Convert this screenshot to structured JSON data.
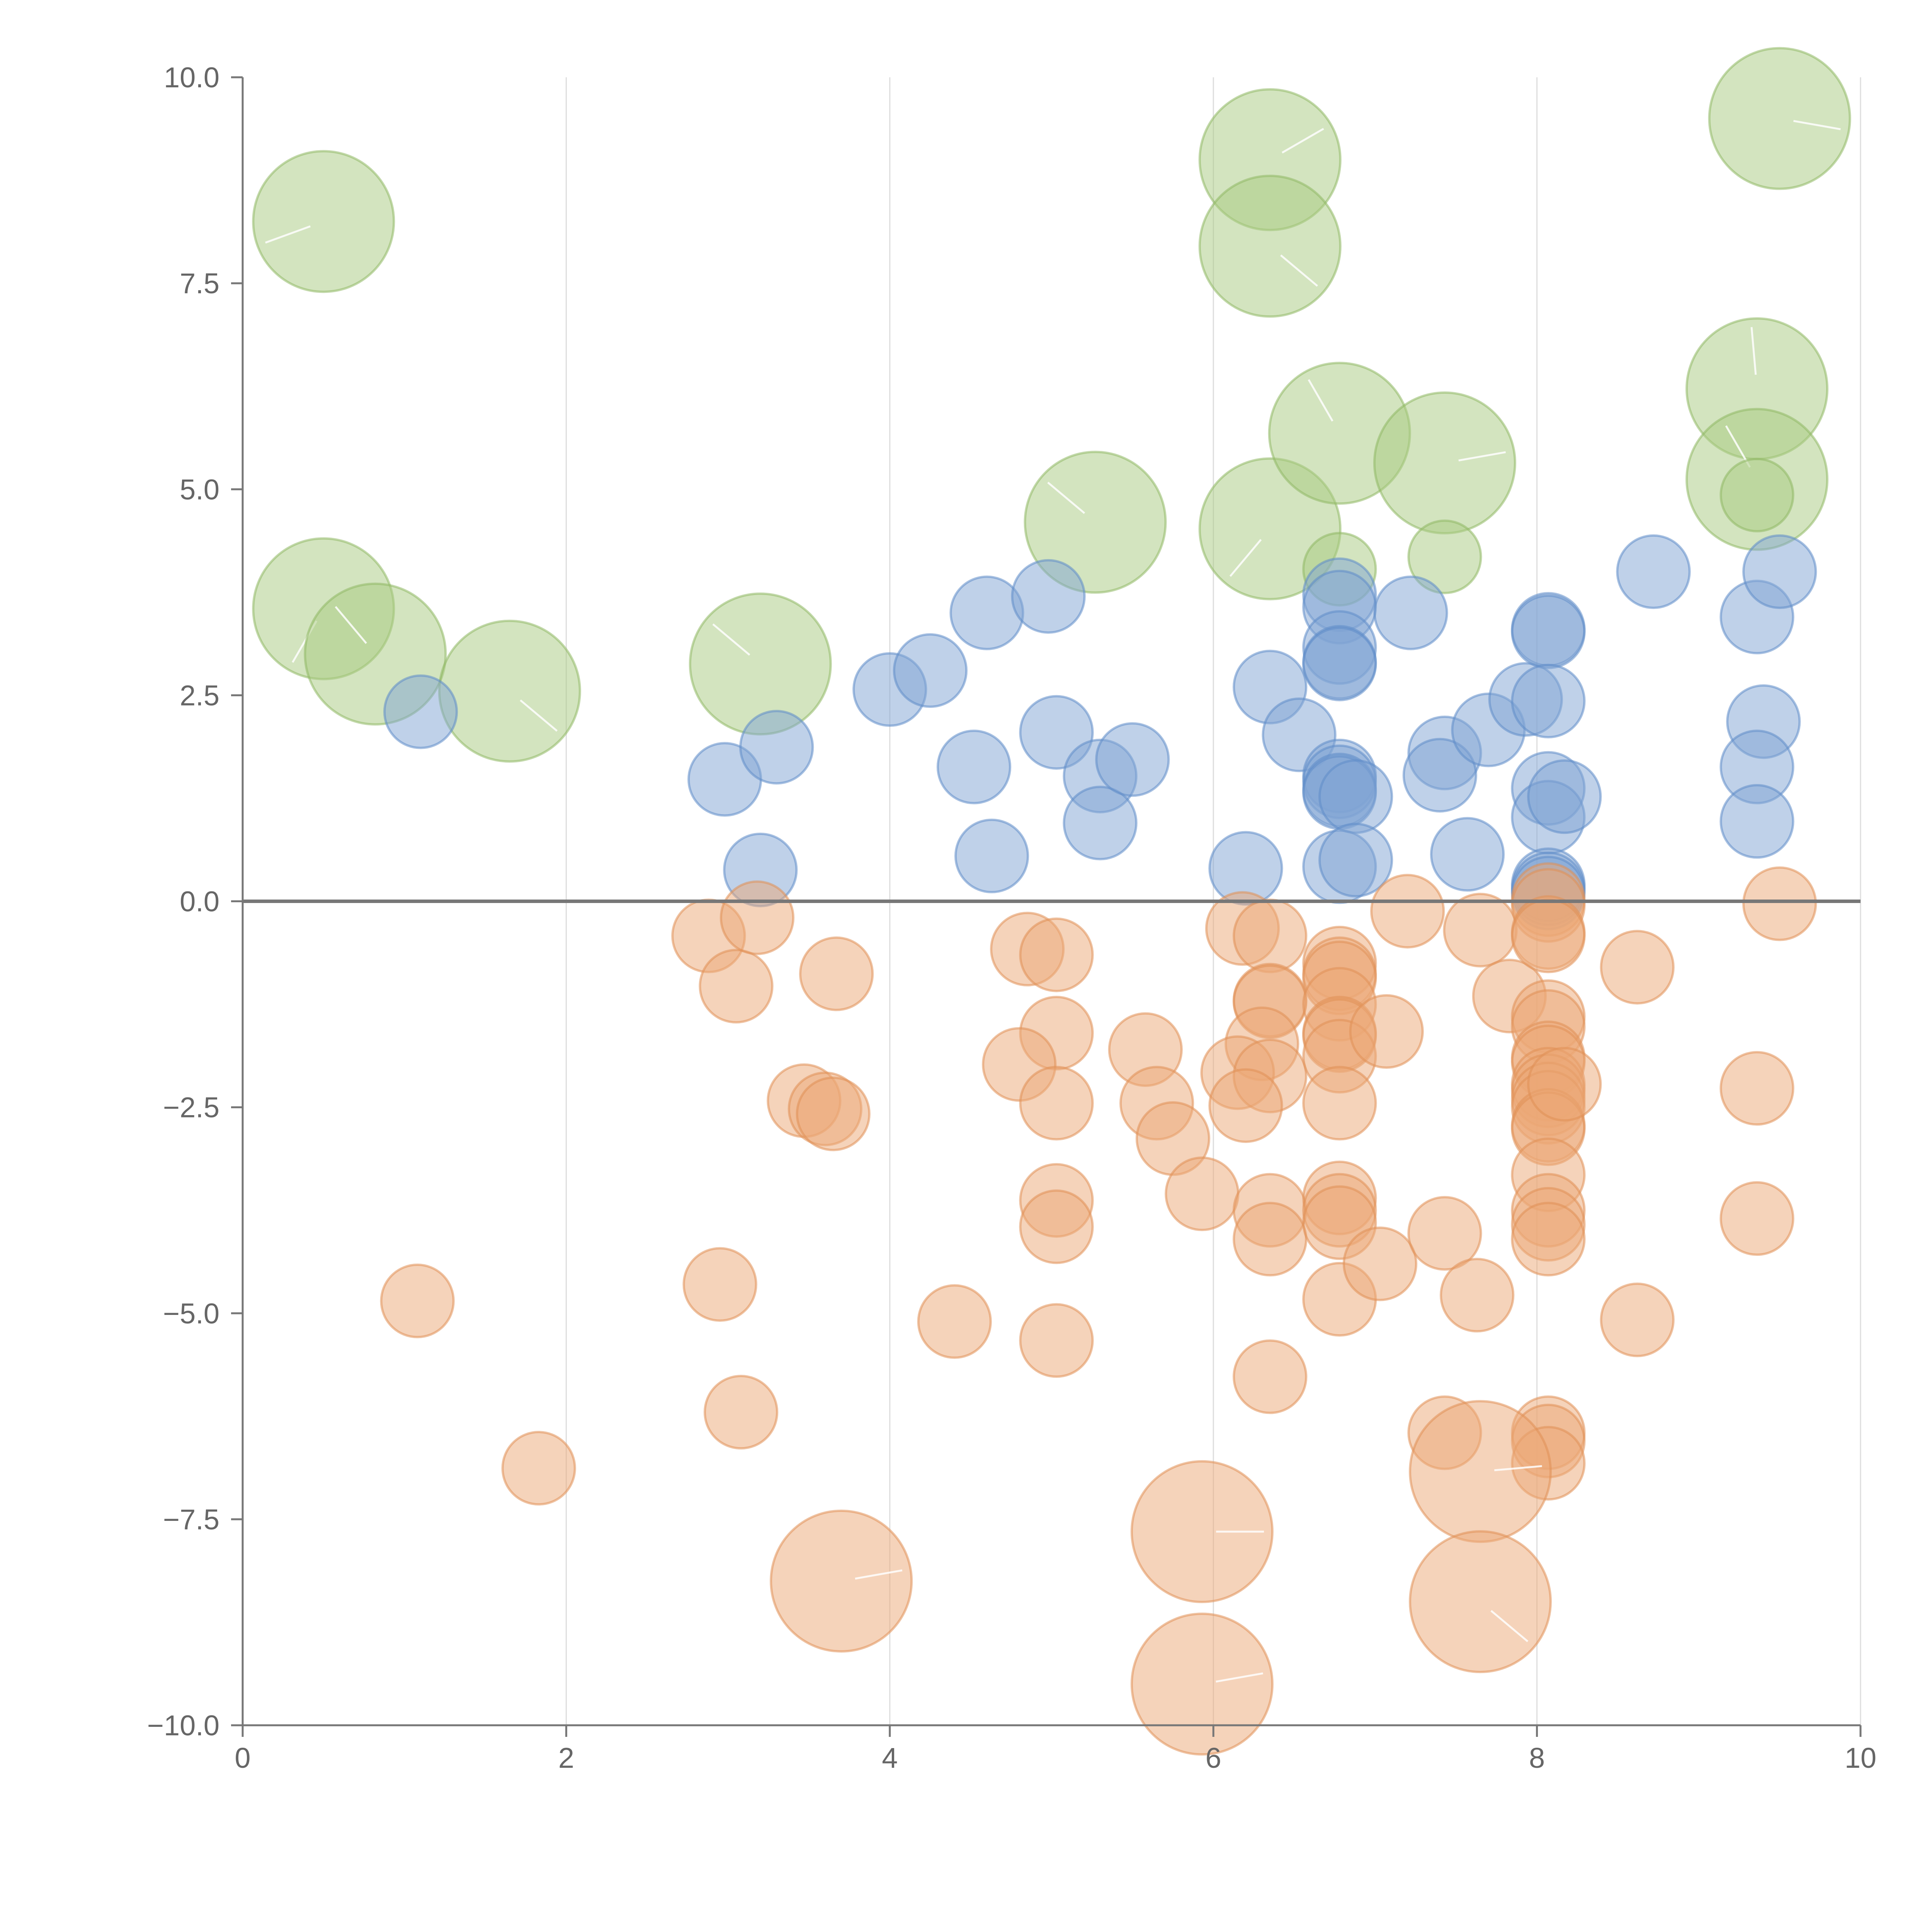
{
  "chart_data": {
    "type": "scatter",
    "title": "",
    "xlabel": "",
    "ylabel": "",
    "xlim": [
      0,
      10
    ],
    "ylim": [
      -10,
      10
    ],
    "grid": {
      "vertical": true,
      "horizontal": false
    },
    "reference_line": {
      "y": 0,
      "label": ""
    },
    "x_ticks": [
      0,
      2,
      4,
      6,
      8,
      10
    ],
    "x_tick_labels": [
      "0",
      "2",
      "4",
      "6",
      "8",
      "10"
    ],
    "y_ticks": [
      10,
      7.5,
      5,
      2.5,
      0,
      -2.5,
      -5,
      -7.5,
      -10
    ],
    "y_tick_labels": [
      "10.0",
      "7.5",
      "5.0",
      "2.5",
      "0.0",
      "−2.5",
      "−5.0",
      "−7.5",
      "−10.0"
    ],
    "size_unit": "relative magnitude",
    "series": [
      {
        "name": "green",
        "color": "#a8c97f",
        "stroke": "#8fb864",
        "points": [
          {
            "x": 0.5,
            "y": 8.25,
            "s": 3.5,
            "a": 200
          },
          {
            "x": 0.5,
            "y": 3.55,
            "s": 3.5,
            "a": 240
          },
          {
            "x": 0.82,
            "y": 3.0,
            "s": 3.5,
            "a": 130
          },
          {
            "x": 1.65,
            "y": 2.55,
            "s": 3.5,
            "a": 320
          },
          {
            "x": 3.2,
            "y": 2.88,
            "s": 3.5,
            "a": 140
          },
          {
            "x": 5.27,
            "y": 4.6,
            "s": 3.5,
            "a": 140
          },
          {
            "x": 6.35,
            "y": 9.0,
            "s": 3.5,
            "a": 30
          },
          {
            "x": 6.35,
            "y": 7.95,
            "s": 3.5,
            "a": 320
          },
          {
            "x": 6.35,
            "y": 4.52,
            "s": 3.5,
            "a": 230
          },
          {
            "x": 6.78,
            "y": 5.68,
            "s": 3.5,
            "a": 120
          },
          {
            "x": 7.43,
            "y": 5.32,
            "s": 3.5,
            "a": 10
          },
          {
            "x": 9.36,
            "y": 6.22,
            "s": 3.5,
            "a": 95
          },
          {
            "x": 9.36,
            "y": 5.12,
            "s": 3.5,
            "a": 120
          },
          {
            "x": 9.5,
            "y": 9.5,
            "s": 3.5,
            "a": 350
          },
          {
            "x": 6.78,
            "y": 4.03,
            "s": 1.8,
            "a": 0
          },
          {
            "x": 7.43,
            "y": 4.18,
            "s": 1.8,
            "a": 0
          },
          {
            "x": 9.36,
            "y": 4.93,
            "s": 1.8,
            "a": 0
          }
        ]
      },
      {
        "name": "blue",
        "color": "#7fa3d4",
        "stroke": "#5f8dc8",
        "points": [
          {
            "x": 1.1,
            "y": 2.3,
            "s": 1.8
          },
          {
            "x": 2.98,
            "y": 1.48,
            "s": 1.8
          },
          {
            "x": 3.2,
            "y": 0.38,
            "s": 1.8
          },
          {
            "x": 3.3,
            "y": 1.87,
            "s": 1.8
          },
          {
            "x": 4.0,
            "y": 2.57,
            "s": 1.8
          },
          {
            "x": 4.25,
            "y": 2.8,
            "s": 1.8
          },
          {
            "x": 4.52,
            "y": 1.63,
            "s": 1.8
          },
          {
            "x": 4.6,
            "y": 3.5,
            "s": 1.8
          },
          {
            "x": 4.63,
            "y": 0.55,
            "s": 1.8
          },
          {
            "x": 4.98,
            "y": 3.7,
            "s": 1.8
          },
          {
            "x": 5.03,
            "y": 2.05,
            "s": 1.8
          },
          {
            "x": 5.3,
            "y": 1.52,
            "s": 1.8
          },
          {
            "x": 5.3,
            "y": 0.95,
            "s": 1.8
          },
          {
            "x": 5.5,
            "y": 1.72,
            "s": 1.8
          },
          {
            "x": 6.2,
            "y": 0.4,
            "s": 1.8
          },
          {
            "x": 6.35,
            "y": 2.6,
            "s": 1.8
          },
          {
            "x": 6.53,
            "y": 2.02,
            "s": 1.8
          },
          {
            "x": 6.78,
            "y": 3.72,
            "s": 1.8
          },
          {
            "x": 6.78,
            "y": 3.57,
            "s": 1.8
          },
          {
            "x": 6.78,
            "y": 3.08,
            "s": 1.8
          },
          {
            "x": 6.78,
            "y": 2.9,
            "s": 1.8
          },
          {
            "x": 6.78,
            "y": 2.88,
            "s": 1.8
          },
          {
            "x": 6.78,
            "y": 1.52,
            "s": 1.8
          },
          {
            "x": 6.78,
            "y": 1.45,
            "s": 1.8
          },
          {
            "x": 6.78,
            "y": 1.35,
            "s": 1.8
          },
          {
            "x": 6.78,
            "y": 1.32,
            "s": 1.8
          },
          {
            "x": 6.88,
            "y": 1.27,
            "s": 1.8
          },
          {
            "x": 6.78,
            "y": 0.42,
            "s": 1.8
          },
          {
            "x": 6.88,
            "y": 0.5,
            "s": 1.8
          },
          {
            "x": 7.22,
            "y": 3.5,
            "s": 1.8
          },
          {
            "x": 7.43,
            "y": 1.8,
            "s": 1.8
          },
          {
            "x": 7.4,
            "y": 1.53,
            "s": 1.8
          },
          {
            "x": 7.57,
            "y": 0.57,
            "s": 1.8
          },
          {
            "x": 7.7,
            "y": 2.08,
            "s": 1.8
          },
          {
            "x": 7.93,
            "y": 2.45,
            "s": 1.8
          },
          {
            "x": 8.07,
            "y": 3.3,
            "s": 1.8
          },
          {
            "x": 8.07,
            "y": 3.27,
            "s": 1.8
          },
          {
            "x": 8.07,
            "y": 2.43,
            "s": 1.8
          },
          {
            "x": 8.07,
            "y": 1.37,
            "s": 1.8
          },
          {
            "x": 8.07,
            "y": 1.02,
            "s": 1.8
          },
          {
            "x": 8.17,
            "y": 1.27,
            "s": 1.8
          },
          {
            "x": 8.07,
            "y": 0.2,
            "s": 1.8
          },
          {
            "x": 8.07,
            "y": 0.15,
            "s": 1.8
          },
          {
            "x": 8.07,
            "y": 0.1,
            "s": 1.8
          },
          {
            "x": 8.72,
            "y": 4.0,
            "s": 1.8
          },
          {
            "x": 9.36,
            "y": 3.45,
            "s": 1.8
          },
          {
            "x": 9.4,
            "y": 2.18,
            "s": 1.8
          },
          {
            "x": 9.36,
            "y": 1.63,
            "s": 1.8
          },
          {
            "x": 9.36,
            "y": 0.97,
            "s": 1.8
          },
          {
            "x": 9.5,
            "y": 4.0,
            "s": 1.8
          }
        ]
      },
      {
        "name": "orange",
        "color": "#eba876",
        "stroke": "#e08f55",
        "points": [
          {
            "x": 1.08,
            "y": -4.85,
            "s": 1.8
          },
          {
            "x": 1.83,
            "y": -6.88,
            "s": 1.8
          },
          {
            "x": 2.88,
            "y": -0.42,
            "s": 1.8
          },
          {
            "x": 3.05,
            "y": -1.03,
            "s": 1.8
          },
          {
            "x": 3.18,
            "y": -0.2,
            "s": 1.8
          },
          {
            "x": 2.95,
            "y": -4.65,
            "s": 1.8
          },
          {
            "x": 3.08,
            "y": -6.2,
            "s": 1.8
          },
          {
            "x": 3.47,
            "y": -2.42,
            "s": 1.8
          },
          {
            "x": 3.6,
            "y": -2.52,
            "s": 1.8
          },
          {
            "x": 3.65,
            "y": -2.58,
            "s": 1.8
          },
          {
            "x": 3.67,
            "y": -0.88,
            "s": 1.8
          },
          {
            "x": 4.4,
            "y": -5.1,
            "s": 1.8
          },
          {
            "x": 4.85,
            "y": -0.58,
            "s": 1.8
          },
          {
            "x": 5.03,
            "y": -0.65,
            "s": 1.8
          },
          {
            "x": 5.03,
            "y": -1.6,
            "s": 1.8
          },
          {
            "x": 4.8,
            "y": -1.98,
            "s": 1.8
          },
          {
            "x": 5.03,
            "y": -2.45,
            "s": 1.8
          },
          {
            "x": 5.03,
            "y": -3.63,
            "s": 1.8
          },
          {
            "x": 5.03,
            "y": -3.95,
            "s": 1.8
          },
          {
            "x": 5.03,
            "y": -5.33,
            "s": 1.8
          },
          {
            "x": 5.58,
            "y": -1.8,
            "s": 1.8
          },
          {
            "x": 5.65,
            "y": -2.45,
            "s": 1.8
          },
          {
            "x": 5.75,
            "y": -2.88,
            "s": 1.8
          },
          {
            "x": 5.93,
            "y": -3.55,
            "s": 1.8
          },
          {
            "x": 6.18,
            "y": -0.33,
            "s": 1.8
          },
          {
            "x": 6.35,
            "y": -0.42,
            "s": 1.8
          },
          {
            "x": 6.35,
            "y": -1.2,
            "s": 1.8
          },
          {
            "x": 6.35,
            "y": -1.22,
            "s": 1.8
          },
          {
            "x": 6.3,
            "y": -1.73,
            "s": 1.8
          },
          {
            "x": 6.15,
            "y": -2.08,
            "s": 1.8
          },
          {
            "x": 6.35,
            "y": -2.12,
            "s": 1.8
          },
          {
            "x": 6.2,
            "y": -2.48,
            "s": 1.8
          },
          {
            "x": 6.35,
            "y": -3.75,
            "s": 1.8
          },
          {
            "x": 6.35,
            "y": -4.1,
            "s": 1.8
          },
          {
            "x": 6.35,
            "y": -5.77,
            "s": 1.8
          },
          {
            "x": 6.78,
            "y": -0.75,
            "s": 1.8
          },
          {
            "x": 6.78,
            "y": -0.88,
            "s": 1.8
          },
          {
            "x": 6.78,
            "y": -0.93,
            "s": 1.8
          },
          {
            "x": 6.78,
            "y": -1.25,
            "s": 1.8
          },
          {
            "x": 6.78,
            "y": -1.6,
            "s": 1.8
          },
          {
            "x": 6.78,
            "y": -1.63,
            "s": 1.8
          },
          {
            "x": 6.78,
            "y": -1.88,
            "s": 1.8
          },
          {
            "x": 6.78,
            "y": -2.45,
            "s": 1.8
          },
          {
            "x": 6.78,
            "y": -3.6,
            "s": 1.8
          },
          {
            "x": 6.78,
            "y": -3.75,
            "s": 1.8
          },
          {
            "x": 6.78,
            "y": -3.9,
            "s": 1.8
          },
          {
            "x": 6.78,
            "y": -4.83,
            "s": 1.8
          },
          {
            "x": 7.07,
            "y": -1.58,
            "s": 1.8
          },
          {
            "x": 7.03,
            "y": -4.4,
            "s": 1.8
          },
          {
            "x": 7.2,
            "y": -0.12,
            "s": 1.8
          },
          {
            "x": 7.43,
            "y": -4.03,
            "s": 1.8
          },
          {
            "x": 7.43,
            "y": -6.45,
            "s": 1.8
          },
          {
            "x": 7.65,
            "y": -0.35,
            "s": 1.8
          },
          {
            "x": 7.63,
            "y": -4.78,
            "s": 1.8
          },
          {
            "x": 7.83,
            "y": -1.15,
            "s": 1.8
          },
          {
            "x": 8.07,
            "y": 0.02,
            "s": 1.8
          },
          {
            "x": 8.07,
            "y": -0.05,
            "s": 1.8
          },
          {
            "x": 8.07,
            "y": -0.38,
            "s": 1.8
          },
          {
            "x": 8.07,
            "y": -0.42,
            "s": 1.8
          },
          {
            "x": 8.07,
            "y": -1.4,
            "s": 1.8
          },
          {
            "x": 8.07,
            "y": -1.52,
            "s": 1.8
          },
          {
            "x": 8.07,
            "y": -1.9,
            "s": 1.8
          },
          {
            "x": 8.07,
            "y": -1.95,
            "s": 1.8
          },
          {
            "x": 8.07,
            "y": -2.22,
            "s": 1.8
          },
          {
            "x": 8.07,
            "y": -2.3,
            "s": 1.8
          },
          {
            "x": 8.07,
            "y": -2.4,
            "s": 1.8
          },
          {
            "x": 8.07,
            "y": -2.5,
            "s": 1.8
          },
          {
            "x": 8.07,
            "y": -2.72,
            "s": 1.8
          },
          {
            "x": 8.07,
            "y": -2.76,
            "s": 1.8
          },
          {
            "x": 8.17,
            "y": -2.22,
            "s": 1.8
          },
          {
            "x": 8.07,
            "y": -3.32,
            "s": 1.8
          },
          {
            "x": 8.07,
            "y": -3.75,
            "s": 1.8
          },
          {
            "x": 8.07,
            "y": -3.92,
            "s": 1.8
          },
          {
            "x": 8.07,
            "y": -4.1,
            "s": 1.8
          },
          {
            "x": 8.07,
            "y": -6.45,
            "s": 1.8
          },
          {
            "x": 8.07,
            "y": -6.55,
            "s": 1.8
          },
          {
            "x": 8.07,
            "y": -6.82,
            "s": 1.8
          },
          {
            "x": 8.62,
            "y": -0.8,
            "s": 1.8
          },
          {
            "x": 8.62,
            "y": -5.08,
            "s": 1.8
          },
          {
            "x": 9.36,
            "y": -2.27,
            "s": 1.8
          },
          {
            "x": 9.36,
            "y": -3.85,
            "s": 1.8
          },
          {
            "x": 9.5,
            "y": -0.03,
            "s": 1.8
          },
          {
            "x": 3.7,
            "y": -8.25,
            "s": 3.5,
            "a": 10
          },
          {
            "x": 5.93,
            "y": -7.65,
            "s": 3.5,
            "a": 0
          },
          {
            "x": 5.93,
            "y": -9.5,
            "s": 3.5,
            "a": 10
          },
          {
            "x": 7.65,
            "y": -6.92,
            "s": 3.5,
            "a": 5
          },
          {
            "x": 7.65,
            "y": -8.5,
            "s": 3.5,
            "a": 320
          }
        ]
      }
    ]
  }
}
